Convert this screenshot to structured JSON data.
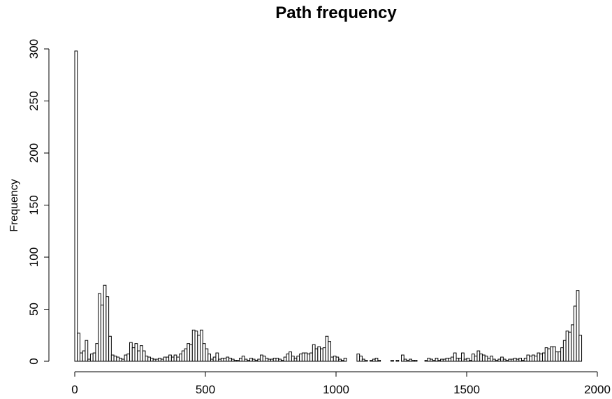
{
  "chart_data": {
    "type": "bar",
    "title": "Path frequency",
    "xlabel": "",
    "ylabel": "Frequency",
    "xlim": [
      0,
      2000
    ],
    "ylim": [
      0,
      300
    ],
    "x_ticks": [
      "0",
      "500",
      "1000",
      "1500",
      "2000"
    ],
    "y_ticks": [
      "0",
      "50",
      "100",
      "150",
      "200",
      "250",
      "300"
    ],
    "bin_width": 10,
    "grid": false,
    "legend": "none",
    "bin_start": 0,
    "values": [
      298,
      27,
      8,
      10,
      20,
      2,
      7,
      8,
      17,
      65,
      54,
      73,
      62,
      24,
      6,
      5,
      4,
      3,
      2,
      6,
      7,
      18,
      13,
      17,
      10,
      15,
      10,
      5,
      4,
      3,
      2,
      2,
      3,
      2,
      4,
      4,
      6,
      4,
      6,
      4,
      7,
      10,
      12,
      17,
      16,
      30,
      29,
      25,
      30,
      17,
      12,
      7,
      2,
      4,
      8,
      2,
      3,
      3,
      4,
      3,
      2,
      1,
      1,
      3,
      5,
      2,
      1,
      3,
      2,
      1,
      2,
      6,
      5,
      3,
      2,
      2,
      3,
      3,
      2,
      1,
      4,
      7,
      9,
      5,
      3,
      5,
      7,
      8,
      8,
      7,
      8,
      16,
      12,
      14,
      12,
      13,
      24,
      19,
      4,
      5,
      4,
      2,
      1,
      3,
      0,
      0,
      0,
      0,
      7,
      5,
      2,
      1,
      0,
      1,
      2,
      3,
      1,
      0,
      0,
      0,
      0,
      1,
      0,
      1,
      0,
      6,
      2,
      1,
      2,
      1,
      1,
      0,
      0,
      0,
      1,
      3,
      2,
      1,
      3,
      1,
      2,
      2,
      3,
      3,
      4,
      8,
      3,
      3,
      8,
      2,
      3,
      1,
      7,
      5,
      10,
      7,
      6,
      5,
      3,
      5,
      2,
      1,
      2,
      4,
      2,
      1,
      2,
      2,
      3,
      2,
      3,
      1,
      3,
      6,
      5,
      6,
      5,
      8,
      7,
      8,
      13,
      12,
      14,
      14,
      9,
      9,
      13,
      20,
      29,
      28,
      35,
      53,
      68,
      25,
      0,
      0,
      0,
      0,
      0,
      0
    ]
  }
}
